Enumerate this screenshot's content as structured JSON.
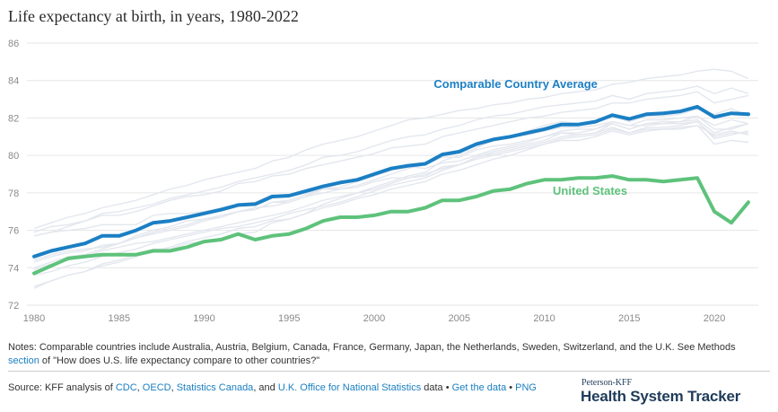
{
  "title": "Life expectancy at birth, in years, 1980-2022",
  "chart_data": {
    "type": "line",
    "title": "Life expectancy at birth, in years, 1980-2022",
    "xlabel": "",
    "ylabel": "",
    "xlim": [
      1980,
      2022
    ],
    "ylim": [
      72,
      86
    ],
    "x_ticks": [
      1980,
      1985,
      1990,
      1995,
      2000,
      2005,
      2010,
      2015,
      2020
    ],
    "y_ticks": [
      72,
      74,
      76,
      78,
      80,
      82,
      84,
      86
    ],
    "grid": true,
    "x": [
      1980,
      1981,
      1982,
      1983,
      1984,
      1985,
      1986,
      1987,
      1988,
      1989,
      1990,
      1991,
      1992,
      1993,
      1994,
      1995,
      1996,
      1997,
      1998,
      1999,
      2000,
      2001,
      2002,
      2003,
      2004,
      2005,
      2006,
      2007,
      2008,
      2009,
      2010,
      2011,
      2012,
      2013,
      2014,
      2015,
      2016,
      2017,
      2018,
      2019,
      2020,
      2021,
      2022
    ],
    "series": [
      {
        "name": "Comparable Country Average",
        "color": "#1b7fc4",
        "values": [
          74.6,
          74.9,
          75.1,
          75.3,
          75.7,
          75.7,
          76.0,
          76.4,
          76.5,
          76.7,
          76.9,
          77.1,
          77.35,
          77.4,
          77.8,
          77.85,
          78.1,
          78.35,
          78.55,
          78.7,
          79.0,
          79.3,
          79.45,
          79.55,
          80.05,
          80.2,
          80.6,
          80.85,
          81.0,
          81.2,
          81.4,
          81.65,
          81.65,
          81.8,
          82.15,
          81.95,
          82.2,
          82.25,
          82.35,
          82.6,
          82.05,
          82.25,
          82.2
        ]
      },
      {
        "name": "United States",
        "color": "#5ec27b",
        "values": [
          73.7,
          74.1,
          74.5,
          74.6,
          74.7,
          74.7,
          74.7,
          74.9,
          74.9,
          75.1,
          75.4,
          75.5,
          75.8,
          75.5,
          75.7,
          75.8,
          76.1,
          76.5,
          76.7,
          76.7,
          76.8,
          77.0,
          77.0,
          77.2,
          77.6,
          77.6,
          77.8,
          78.1,
          78.2,
          78.5,
          78.7,
          78.7,
          78.8,
          78.8,
          78.9,
          78.7,
          78.7,
          78.6,
          78.7,
          78.8,
          77.0,
          76.4,
          77.5
        ]
      }
    ],
    "background_series": {
      "color": "#e3e7ee",
      "values": [
        [
          76.1,
          76.4,
          76.7,
          76.9,
          77.2,
          77.4,
          77.6,
          77.9,
          78.2,
          78.4,
          78.7,
          78.9,
          79.1,
          79.3,
          79.7,
          79.9,
          80.3,
          80.6,
          80.8,
          81.0,
          81.3,
          81.6,
          81.9,
          82.0,
          82.2,
          82.4,
          82.5,
          82.7,
          82.8,
          83.0,
          83.1,
          83.3,
          83.4,
          83.5,
          83.8,
          83.9,
          84.1,
          84.2,
          84.3,
          84.5,
          84.6,
          84.5,
          84.1
        ],
        [
          75.7,
          75.9,
          76.2,
          76.5,
          76.9,
          77.0,
          77.2,
          77.4,
          77.7,
          77.9,
          78.1,
          78.3,
          78.6,
          78.8,
          79.0,
          79.2,
          79.5,
          79.9,
          80.0,
          80.2,
          80.5,
          80.8,
          81.0,
          81.1,
          81.4,
          81.6,
          81.9,
          82.1,
          82.2,
          82.4,
          82.6,
          82.7,
          82.8,
          82.9,
          83.2,
          83.0,
          83.3,
          83.4,
          83.5,
          83.7,
          83.3,
          83.6,
          83.3
        ],
        [
          75.9,
          76.2,
          76.3,
          76.5,
          76.8,
          76.8,
          77.0,
          77.3,
          77.6,
          77.8,
          77.9,
          78.1,
          78.5,
          78.6,
          78.9,
          79.0,
          79.3,
          79.5,
          79.7,
          79.9,
          80.1,
          80.4,
          80.5,
          80.6,
          81.0,
          81.2,
          81.4,
          81.6,
          81.8,
          82.0,
          82.1,
          82.3,
          82.4,
          82.5,
          82.8,
          82.8,
          83.0,
          83.1,
          83.2,
          83.4,
          82.8,
          83.0,
          83.2
        ],
        [
          74.0,
          74.3,
          74.6,
          74.7,
          75.0,
          75.3,
          75.7,
          76.0,
          76.2,
          76.5,
          76.6,
          76.8,
          77.0,
          77.2,
          77.3,
          77.5,
          77.8,
          78.2,
          78.5,
          78.7,
          79.0,
          79.3,
          79.4,
          79.3,
          79.6,
          79.7,
          80.0,
          80.3,
          80.5,
          80.7,
          81.0,
          81.3,
          81.4,
          81.4,
          81.7,
          81.4,
          81.7,
          81.8,
          81.8,
          81.9,
          81.2,
          81.5,
          81.7
        ],
        [
          74.3,
          74.6,
          74.8,
          74.9,
          75.2,
          75.3,
          75.6,
          75.9,
          76.1,
          76.3,
          76.6,
          76.7,
          77.0,
          77.1,
          77.5,
          77.5,
          77.8,
          78.0,
          78.2,
          78.4,
          78.7,
          79.0,
          79.3,
          79.5,
          79.9,
          79.9,
          80.3,
          80.5,
          80.6,
          80.8,
          81.0,
          81.2,
          81.1,
          81.2,
          81.7,
          81.4,
          81.7,
          81.7,
          81.7,
          81.8,
          81.0,
          81.2,
          81.2
        ],
        [
          72.9,
          73.3,
          73.6,
          73.8,
          74.2,
          74.4,
          74.7,
          75.0,
          75.0,
          75.3,
          75.4,
          75.6,
          75.8,
          75.9,
          76.4,
          76.6,
          76.9,
          77.4,
          77.7,
          78.0,
          78.3,
          78.6,
          78.9,
          79.1,
          79.7,
          80.0,
          80.4,
          80.8,
          81.0,
          81.3,
          81.6,
          81.8,
          81.7,
          81.8,
          82.1,
          81.8,
          82.1,
          82.1,
          82.2,
          82.5,
          82.2,
          82.5,
          82.1
        ],
        [
          73.6,
          73.8,
          74.1,
          74.3,
          74.6,
          74.8,
          75.0,
          75.3,
          75.5,
          75.7,
          75.9,
          76.1,
          76.2,
          76.4,
          76.6,
          76.9,
          77.1,
          77.3,
          77.5,
          77.8,
          78.1,
          78.4,
          78.6,
          78.8,
          79.2,
          79.5,
          79.9,
          80.1,
          80.3,
          80.5,
          80.7,
          81.0,
          81.1,
          81.2,
          81.5,
          81.2,
          81.5,
          81.5,
          81.6,
          81.8,
          80.9,
          81.1,
          81.3
        ],
        [
          73.0,
          73.3,
          73.6,
          73.8,
          74.1,
          74.3,
          74.6,
          74.9,
          75.1,
          75.4,
          75.6,
          75.8,
          76.1,
          76.2,
          76.5,
          76.6,
          76.9,
          77.2,
          77.4,
          77.7,
          77.9,
          78.2,
          78.4,
          78.6,
          79.0,
          79.2,
          79.5,
          79.8,
          80.0,
          80.3,
          80.6,
          80.8,
          80.8,
          81.0,
          81.3,
          81.1,
          81.3,
          81.4,
          81.4,
          81.6,
          80.6,
          80.8,
          80.7
        ],
        [
          74.4,
          74.7,
          74.9,
          75.0,
          75.1,
          75.3,
          75.6,
          75.8,
          76.0,
          76.2,
          76.5,
          76.7,
          77.0,
          77.1,
          77.5,
          77.6,
          77.9,
          78.2,
          78.3,
          78.6,
          78.9,
          79.2,
          79.4,
          79.6,
          80.0,
          80.3,
          80.5,
          80.8,
          81.0,
          81.1,
          81.3,
          81.5,
          81.5,
          81.6,
          81.8,
          81.6,
          81.9,
          81.9,
          82.0,
          82.1,
          81.6,
          81.9,
          81.7
        ],
        [
          75.7,
          75.9,
          76.0,
          76.1,
          76.3,
          76.3,
          76.3,
          76.8,
          76.9,
          76.9,
          77.0,
          77.2,
          77.4,
          77.5,
          77.9,
          77.8,
          78.0,
          78.2,
          78.2,
          78.3,
          78.6,
          78.8,
          78.8,
          78.9,
          79.4,
          79.5,
          79.9,
          80.2,
          80.4,
          80.6,
          80.8,
          81.2,
          81.2,
          81.4,
          81.8,
          81.6,
          81.6,
          81.7,
          81.8,
          82.1,
          81.4,
          81.4,
          81.7
        ],
        [
          73.9,
          74.2,
          74.4,
          74.6,
          74.9,
          75.1,
          75.3,
          75.4,
          75.6,
          75.8,
          76.0,
          76.2,
          76.4,
          76.6,
          76.8,
          77.0,
          77.3,
          77.6,
          77.8,
          78.0,
          78.2,
          78.5,
          78.8,
          79.0,
          79.3,
          79.5,
          79.8,
          80.0,
          80.2,
          80.4,
          80.6,
          80.9,
          81.0,
          81.1,
          81.4,
          81.2,
          81.4,
          81.4,
          81.5,
          81.6,
          81.1,
          81.3,
          81.1
        ]
      ]
    },
    "annotations": [
      {
        "text": "Comparable Country Average",
        "color": "#1b7fc4",
        "x": 2003.5,
        "y": 83.6
      },
      {
        "text": "United States",
        "color": "#5ec27b",
        "x": 2010.5,
        "y": 77.9
      }
    ]
  },
  "notes_prefix": "Notes: Comparable countries include Australia, Austria, Belgium, Canada, France, Germany, Japan, the Netherlands, Sweden, Switzerland, and the U.K. See Methods ",
  "notes_link": "section",
  "notes_suffix": " of \"How does U.S. life expectancy compare to other countries?\"",
  "source": {
    "prefix": "Source: KFF analysis of ",
    "cdc": "CDC",
    "sep1": ", ",
    "oecd": "OECD",
    "sep2": ", ",
    "statcan": "Statistics Canada",
    "sep3": ", and ",
    "ons": "U.K. Office for National Statistics",
    "sep4": " data • ",
    "get_data": "Get the data",
    "sep5": " • ",
    "png": "PNG"
  },
  "brand": {
    "top": "Peterson-KFF",
    "main": "Health System Tracker"
  }
}
